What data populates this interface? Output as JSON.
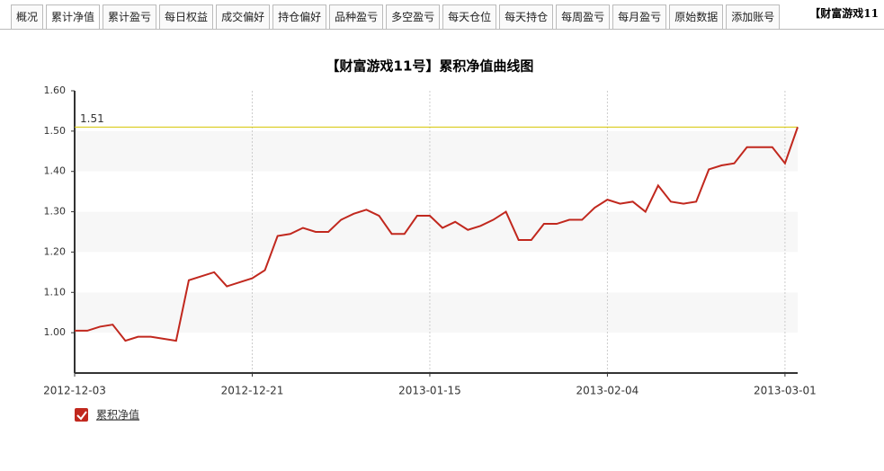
{
  "tabs": [
    "概况",
    "累计净值",
    "累计盈亏",
    "每日权益",
    "成交偏好",
    "持仓偏好",
    "品种盈亏",
    "多空盈亏",
    "每天仓位",
    "每天持仓",
    "每周盈亏",
    "每月盈亏",
    "原始数据",
    "添加账号"
  ],
  "header_text": "【财富游戏11",
  "chart_data": {
    "type": "line",
    "title": "【财富游戏11号】累积净值曲线图",
    "categories": [
      "2012-12-03",
      null,
      null,
      null,
      null,
      null,
      null,
      null,
      null,
      null,
      null,
      null,
      null,
      null,
      "2012-12-21",
      null,
      null,
      null,
      null,
      null,
      null,
      null,
      null,
      null,
      null,
      null,
      null,
      null,
      "2013-01-15",
      null,
      null,
      null,
      null,
      null,
      null,
      null,
      null,
      null,
      null,
      null,
      null,
      null,
      "2013-02-04",
      null,
      null,
      null,
      null,
      null,
      null,
      null,
      null,
      null,
      null,
      null,
      null,
      null,
      "2013-03-01",
      null
    ],
    "series": [
      {
        "name": "累积净值",
        "color": "#c1281e",
        "values": [
          1.005,
          1.005,
          1.015,
          1.02,
          0.98,
          0.99,
          0.99,
          0.985,
          0.98,
          1.13,
          1.14,
          1.15,
          1.115,
          1.125,
          1.135,
          1.155,
          1.24,
          1.245,
          1.26,
          1.25,
          1.25,
          1.28,
          1.295,
          1.305,
          1.29,
          1.245,
          1.245,
          1.29,
          1.29,
          1.26,
          1.275,
          1.255,
          1.265,
          1.28,
          1.3,
          1.23,
          1.23,
          1.27,
          1.27,
          1.28,
          1.28,
          1.31,
          1.33,
          1.32,
          1.325,
          1.3,
          1.365,
          1.325,
          1.32,
          1.325,
          1.405,
          1.415,
          1.42,
          1.46,
          1.46,
          1.46,
          1.42,
          1.51
        ]
      }
    ],
    "ylim": [
      0.9,
      1.6
    ],
    "yticks": [
      {
        "value": 1,
        "label": "1.00"
      },
      {
        "value": 1.1,
        "label": "1.10"
      },
      {
        "value": 1.2,
        "label": "1.20"
      },
      {
        "value": 1.3,
        "label": "1.30"
      },
      {
        "value": 1.4,
        "label": "1.40"
      },
      {
        "value": 1.5,
        "label": "1.50"
      },
      {
        "value": 1.6,
        "label": "1.60"
      }
    ],
    "mark_line": {
      "value": 1.51,
      "color": "#d4c400"
    },
    "grid": "bands",
    "legend": "bottom-left"
  }
}
